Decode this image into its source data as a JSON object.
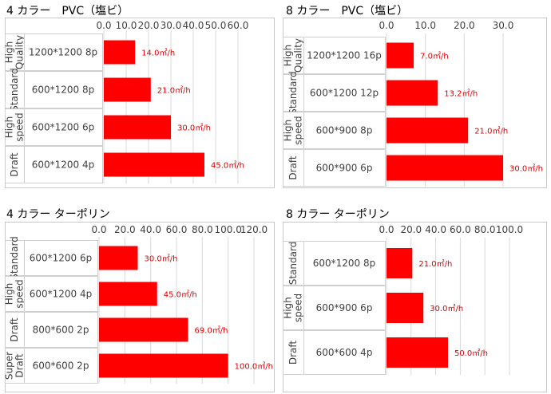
{
  "colors": {
    "bar": "#ff0000",
    "label": "#e00000"
  },
  "chart_data": [
    {
      "type": "bar",
      "orientation": "horizontal",
      "title": "4 カラー　PVC（塩ビ）",
      "xlim": [
        0,
        60
      ],
      "xticks": [
        "0.0",
        "10.0",
        "20.0",
        "30.0",
        "40.0",
        "50.0",
        "60.0"
      ],
      "grid": true,
      "groups": [
        "High Quality",
        "Standard",
        "High speed",
        "Draft"
      ],
      "categories": [
        "1200*1200 8p",
        "600*1200 8p",
        "600*1200 6p",
        "600*1200 4p"
      ],
      "values": [
        14.0,
        21.0,
        30.0,
        45.0
      ],
      "labels": [
        "14.0㎡/h",
        "21.0㎡/h",
        "30.0㎡/h",
        "45.0㎡/h"
      ]
    },
    {
      "type": "bar",
      "orientation": "horizontal",
      "title": "8 カラー　PVC（塩ビ）",
      "xlim": [
        0,
        30
      ],
      "xticks": [
        "0.0",
        "10.0",
        "20.0",
        "30.0"
      ],
      "grid": true,
      "groups": [
        "High Quality",
        "Standard",
        "High speed",
        "Draft"
      ],
      "categories": [
        "1200*1200 16p",
        "600*1200 12p",
        "600*900 8p",
        "600*900 6p"
      ],
      "values": [
        7.0,
        13.2,
        21.0,
        30.0
      ],
      "labels": [
        "7.0㎡/h",
        "13.2㎡/h",
        "21.0㎡/h",
        "30.0㎡/h"
      ]
    },
    {
      "type": "bar",
      "orientation": "horizontal",
      "title": "4 カラー ターポリン",
      "xlim": [
        0,
        120
      ],
      "xticks": [
        "0.0",
        "20.0",
        "40.0",
        "60.0",
        "80.0",
        "100.0",
        "120.0"
      ],
      "grid": true,
      "groups": [
        "Standard",
        "High speed",
        "Draft",
        "Super Draft"
      ],
      "categories": [
        "600*1200 6p",
        "600*1200 4p",
        "800*600 2p",
        "600*600 2p"
      ],
      "values": [
        30.0,
        45.0,
        69.0,
        100.0
      ],
      "labels": [
        "30.0㎡/h",
        "45.0㎡/h",
        "69.0㎡/h",
        "100.0㎡/h"
      ]
    },
    {
      "type": "bar",
      "orientation": "horizontal",
      "title": "8 カラー ターポリン",
      "xlim": [
        0,
        100
      ],
      "xticks": [
        "0.0",
        "20.0",
        "40.0",
        "60.0",
        "80.0",
        "100.0"
      ],
      "grid": true,
      "groups": [
        "Standard",
        "High speed",
        "Draft"
      ],
      "categories": [
        "600*1200 8p",
        "600*900 6p",
        "600*600 4p"
      ],
      "values": [
        21.0,
        30.0,
        50.0
      ],
      "labels": [
        "21.0㎡/h",
        "30.0㎡/h",
        "50.0㎡/h"
      ]
    }
  ]
}
